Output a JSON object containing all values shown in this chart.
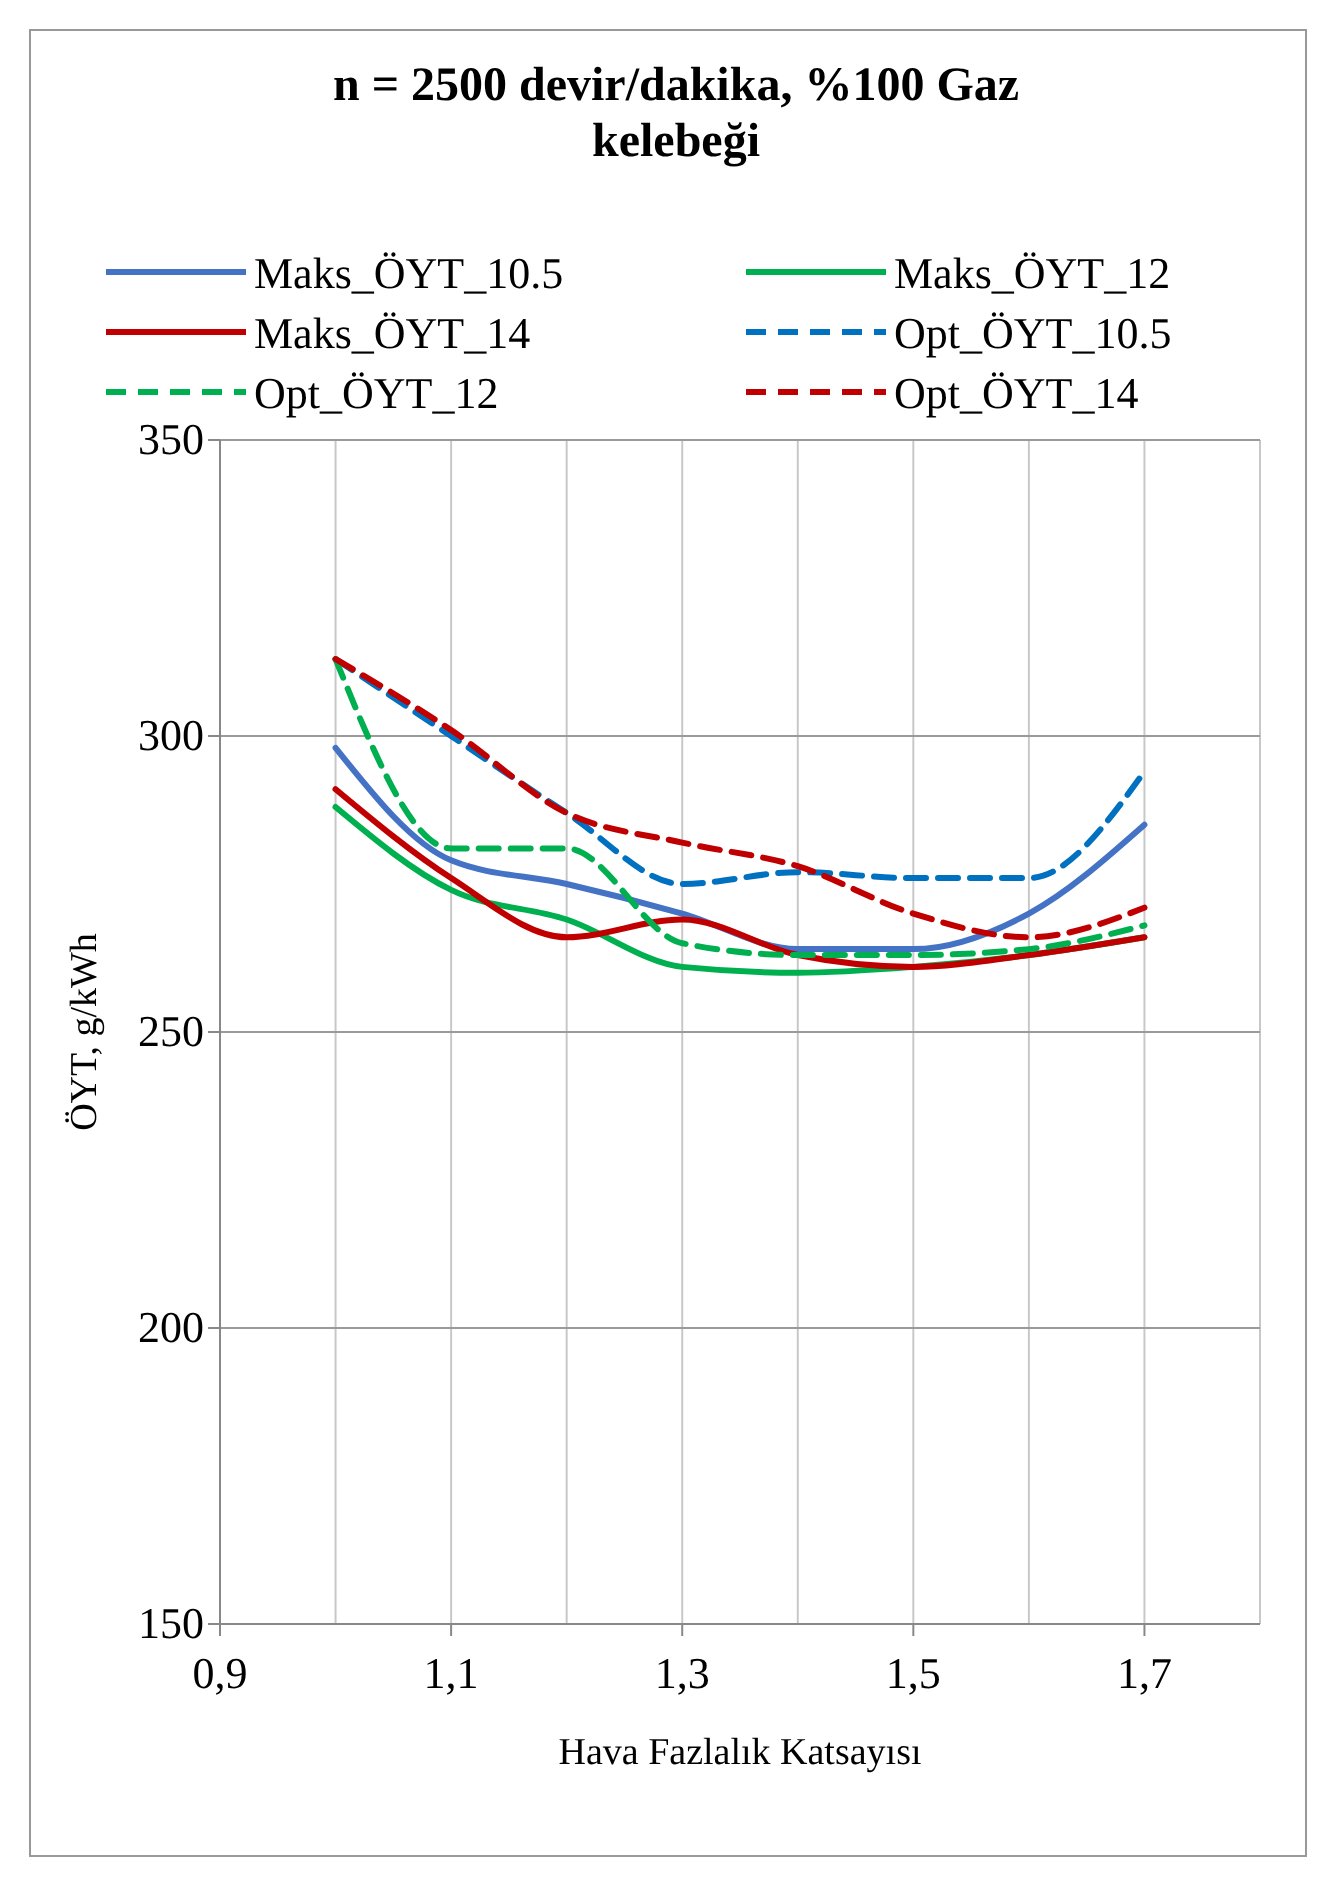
{
  "chart_data": {
    "type": "line",
    "title": "n = 2500 devir/dakika, %100 Gaz kelebeği",
    "xlabel": "Hava Fazlalık Katsayısı",
    "ylabel": "ÖYT, g/kWh",
    "x": [
      1.0,
      1.1,
      1.2,
      1.3,
      1.4,
      1.5,
      1.6,
      1.7
    ],
    "series": [
      {
        "name": "Maks_ÖYT_10.5",
        "color": "#4472c4",
        "line_style": "solid",
        "values": [
          298,
          279,
          275,
          270,
          264,
          264,
          270,
          285
        ]
      },
      {
        "name": "Maks_ÖYT_12",
        "color": "#00b050",
        "line_style": "solid",
        "values": [
          288,
          274,
          269,
          261,
          260,
          261,
          263,
          266
        ]
      },
      {
        "name": "Maks_ÖYT_14",
        "color": "#c00000",
        "line_style": "solid",
        "values": [
          291,
          276,
          266,
          269,
          263,
          261,
          263,
          266
        ]
      },
      {
        "name": "Opt_ÖYT_10.5",
        "color": "#0070c0",
        "line_style": "dashed",
        "values": [
          313,
          300,
          287,
          275,
          277,
          276,
          276,
          294
        ]
      },
      {
        "name": "Opt_ÖYT_12",
        "color": "#00b050",
        "line_style": "dashed",
        "values": [
          313,
          281,
          281,
          265,
          263,
          263,
          264,
          268
        ]
      },
      {
        "name": "Opt_ÖYT_14",
        "color": "#c00000",
        "line_style": "dashed",
        "values": [
          313,
          301,
          287,
          282,
          278,
          270,
          266,
          271
        ]
      }
    ],
    "xlim": [
      0.9,
      1.8
    ],
    "xticks": [
      {
        "value": 0.9,
        "label": "0,9"
      },
      {
        "value": 1.0,
        "label": null
      },
      {
        "value": 1.1,
        "label": "1,1"
      },
      {
        "value": 1.2,
        "label": null
      },
      {
        "value": 1.3,
        "label": "1,3"
      },
      {
        "value": 1.4,
        "label": null
      },
      {
        "value": 1.5,
        "label": "1,5"
      },
      {
        "value": 1.6,
        "label": null
      },
      {
        "value": 1.7,
        "label": "1,7"
      },
      {
        "value": 1.8,
        "label": null
      }
    ],
    "ylim": [
      150,
      350
    ],
    "yticks": [
      150,
      200,
      250,
      300,
      350
    ],
    "grid": true,
    "legend": "top",
    "marker": "none"
  }
}
